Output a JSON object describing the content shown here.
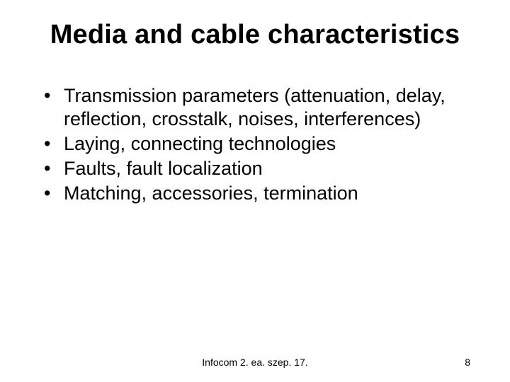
{
  "title": "Media and cable characteristics",
  "bullets": [
    "Transmission parameters (attenuation, delay, reflection, crosstalk, noises, interferences)",
    "Laying, connecting technologies",
    "Faults, fault localization",
    "Matching, accessories, termination"
  ],
  "footer": {
    "center": "Infocom 2. ea. szep. 17.",
    "pageNumber": "8"
  },
  "style": {
    "backgroundColor": "#ffffff",
    "textColor": "#000000",
    "titleFontSize": 38,
    "bodyFontSize": 27,
    "footerFontSize": 14,
    "fontFamily": "Arial"
  }
}
